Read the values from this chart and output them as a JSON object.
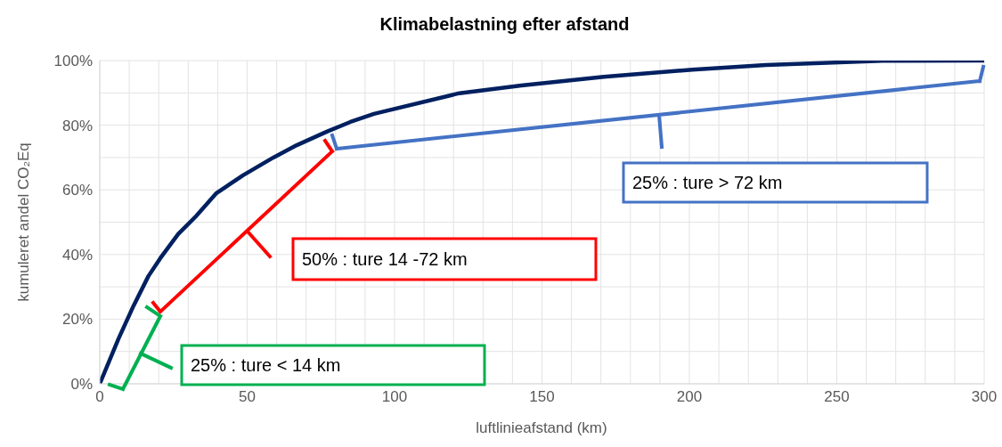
{
  "chart_data": {
    "type": "line",
    "title": "Klimabelastning efter afstand",
    "xlabel": "luftlinieafstand (km)",
    "ylabel": "kumuleret andel CO₂Eq",
    "x": [
      0,
      6.4,
      11.5,
      16.5,
      20.5,
      26.6,
      32.6,
      39.6,
      48.6,
      58.9,
      66.8,
      77,
      85,
      93,
      98,
      122,
      143,
      171,
      201,
      226,
      265.5,
      300
    ],
    "series": [
      {
        "color": "#002060",
        "values": [
          0,
          14,
          24.2,
          33.3,
          38.8,
          46.3,
          51.8,
          59,
          64.5,
          70,
          73.8,
          78,
          81,
          83.5,
          84.6,
          89.9,
          92.3,
          95,
          97.2,
          98.6,
          99.9,
          100
        ]
      }
    ],
    "xlim": [
      0,
      300
    ],
    "xticks": [
      0,
      {
        "value": 10,
        "label": null
      },
      {
        "value": 20,
        "label": null
      },
      {
        "value": 30,
        "label": null
      },
      {
        "value": 40,
        "label": null
      },
      50,
      {
        "value": 60,
        "label": null
      },
      {
        "value": 70,
        "label": null
      },
      {
        "value": 80,
        "label": null
      },
      {
        "value": 90,
        "label": null
      },
      100,
      {
        "value": 110,
        "label": null
      },
      {
        "value": 120,
        "label": null
      },
      {
        "value": 130,
        "label": null
      },
      {
        "value": 140,
        "label": null
      },
      150,
      {
        "value": 160,
        "label": null
      },
      {
        "value": 170,
        "label": null
      },
      {
        "value": 180,
        "label": null
      },
      {
        "value": 190,
        "label": null
      },
      200,
      {
        "value": 210,
        "label": null
      },
      {
        "value": 220,
        "label": null
      },
      {
        "value": 230,
        "label": null
      },
      {
        "value": 240,
        "label": null
      },
      250,
      {
        "value": 260,
        "label": null
      },
      {
        "value": 270,
        "label": null
      },
      {
        "value": 280,
        "label": null
      },
      {
        "value": 290,
        "label": null
      },
      300
    ],
    "ylim": [
      0,
      100
    ],
    "yticks": [
      {
        "value": 0,
        "label": "0%"
      },
      {
        "value": 10,
        "label": null
      },
      {
        "value": 20,
        "label": "20%"
      },
      {
        "value": 30,
        "label": null
      },
      {
        "value": 40,
        "label": "40%"
      },
      {
        "value": 50,
        "label": null
      },
      {
        "value": 60,
        "label": "60%"
      },
      {
        "value": 70,
        "label": null
      },
      {
        "value": 80,
        "label": "80%"
      },
      {
        "value": 90,
        "label": null
      },
      {
        "value": 100,
        "label": "100%"
      }
    ],
    "grid": true,
    "annotations": [
      "25% : ture < 14 km",
      "50% : ture 14 -72 km",
      "25% : ture > 72 km"
    ]
  }
}
